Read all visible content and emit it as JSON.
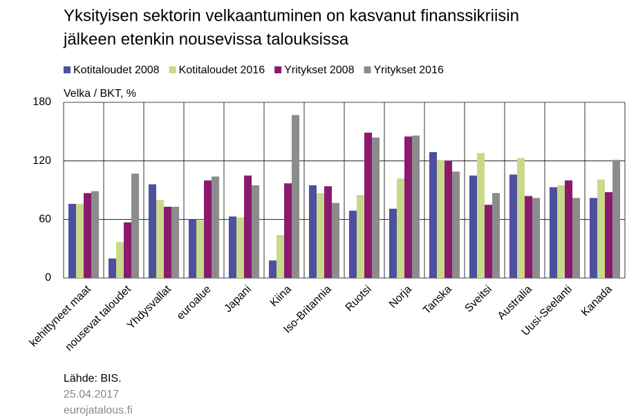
{
  "chart_data": {
    "type": "bar",
    "title": [
      "Yksityisen sektorin velkaantuminen on kasvanut finanssikriisin",
      "jälkeen etenkin nousevissa talouksissa"
    ],
    "y_axis_label": "Velka / BKT, %",
    "categories": [
      "kehittyneet maat",
      "nousevat taloudet",
      "Yhdysvallat",
      "euroalue",
      "Japani",
      "Kiina",
      "Iso-Britannia",
      "Ruotsi",
      "Norja",
      "Tanska",
      "Sveitsi",
      "Australia",
      "Uusi-Seelanti",
      "Kanada"
    ],
    "series": [
      {
        "name": "Kotitaloudet 2008",
        "color": "#4d4f9f",
        "values": [
          76,
          20,
          96,
          60,
          63,
          18,
          95,
          69,
          71,
          129,
          105,
          106,
          93,
          82
        ]
      },
      {
        "name": "Kotitaloudet 2016",
        "color": "#c8d98a",
        "values": [
          76,
          37,
          80,
          59,
          62,
          44,
          87,
          85,
          102,
          121,
          128,
          123,
          95,
          101
        ]
      },
      {
        "name": "Yritykset 2008",
        "color": "#8b1a6f",
        "values": [
          87,
          57,
          73,
          100,
          105,
          97,
          94,
          149,
          145,
          120,
          75,
          84,
          100,
          88
        ]
      },
      {
        "name": "Yritykset 2016",
        "color": "#8c8c8c",
        "values": [
          89,
          107,
          73,
          104,
          95,
          167,
          77,
          144,
          146,
          109,
          87,
          82,
          82,
          121
        ]
      }
    ],
    "ylim": [
      0,
      180
    ],
    "yticks": [
      0,
      60,
      120,
      180
    ],
    "grid": true,
    "source": [
      "Lähde: BIS.",
      "25.04.2017",
      "eurojatalous.fi"
    ]
  }
}
